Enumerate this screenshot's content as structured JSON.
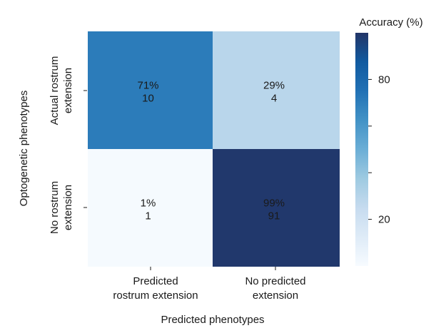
{
  "chart_data": {
    "type": "heatmap",
    "xlabel": "Predicted phenotypes",
    "ylabel": "Optogenetic phenotypes",
    "x_categories": [
      [
        "Predicted",
        "rostrum extension"
      ],
      [
        "No predicted",
        "extension"
      ]
    ],
    "y_categories": [
      [
        "Actual rostrum",
        "extension"
      ],
      [
        "No rostrum",
        "extension"
      ]
    ],
    "cells": [
      [
        {
          "percent": 71,
          "percent_label": "71%",
          "count": "10"
        },
        {
          "percent": 29,
          "percent_label": "29%",
          "count": "4"
        }
      ],
      [
        {
          "percent": 1,
          "percent_label": "1%",
          "count": "1"
        },
        {
          "percent": 99,
          "percent_label": "99%",
          "count": "91"
        }
      ]
    ],
    "colorbar": {
      "title": "Accuracy (%)",
      "range": [
        0,
        100
      ],
      "labeled_ticks": [
        20,
        80
      ],
      "minor_ticks": [
        40,
        60
      ],
      "colormap": "Blues"
    }
  }
}
